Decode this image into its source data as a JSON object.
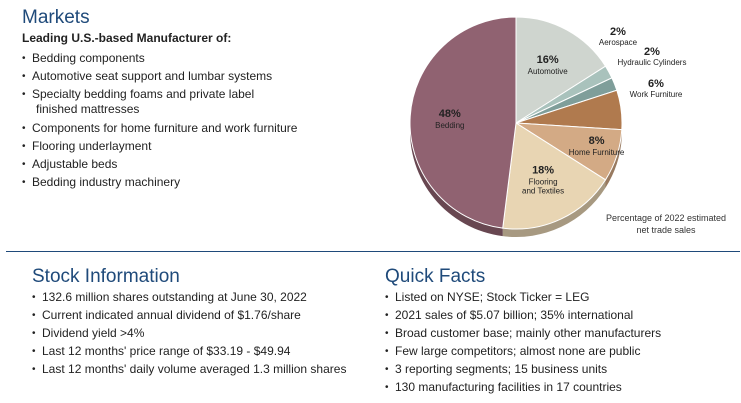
{
  "markets": {
    "title": "Markets",
    "subtitle": "Leading U.S.-based Manufacturer of:",
    "items": [
      "Bedding components",
      "Automotive seat support and lumbar systems",
      "Specialty bedding foams and private label",
      "finished mattresses",
      "Components for home furniture and work furniture",
      "Flooring underlayment",
      "Adjustable beds",
      "Bedding industry machinery"
    ]
  },
  "chart_data": {
    "type": "pie",
    "title": "",
    "caption_lines": [
      "Percentage of 2022 estimated",
      "net trade sales"
    ],
    "units": "%",
    "slices": [
      {
        "label": "Automotive",
        "value": 16,
        "value_label": "16%",
        "color": "#cfd5cf"
      },
      {
        "label": "Aerospace",
        "value": 2,
        "value_label": "2%",
        "color": "#a9c2bc"
      },
      {
        "label": "Hydraulic Cylinders",
        "value": 2,
        "value_label": "2%",
        "color": "#7f9e9a"
      },
      {
        "label": "Work Furniture",
        "value": 6,
        "value_label": "6%",
        "color": "#b07a4e"
      },
      {
        "label": "Home Furniture",
        "value": 8,
        "value_label": "8%",
        "color": "#d3aa85"
      },
      {
        "label": "Flooring and Textiles",
        "label_lines": [
          "Flooring",
          "and Textiles"
        ],
        "value": 18,
        "value_label": "18%",
        "color": "#e8d5b3"
      },
      {
        "label": "Bedding",
        "value": 48,
        "value_label": "48%",
        "color": "#906271"
      }
    ]
  },
  "stock": {
    "title": "Stock Information",
    "items": [
      "132.6 million shares outstanding at June 30, 2022",
      "Current indicated annual dividend of $1.76/share",
      "Dividend yield >4%",
      "Last 12 months' price range of $33.19 - $49.94",
      "Last 12 months' daily volume averaged 1.3 million shares"
    ]
  },
  "facts": {
    "title": "Quick Facts",
    "items": [
      "Listed on NYSE; Stock Ticker = LEG",
      "2021 sales of $5.07 billion; 35% international",
      "Broad customer base; mainly other manufacturers",
      "Few large competitors; almost none are public",
      "3 reporting segments; 15 business units",
      "130 manufacturing facilities in 17 countries"
    ]
  }
}
